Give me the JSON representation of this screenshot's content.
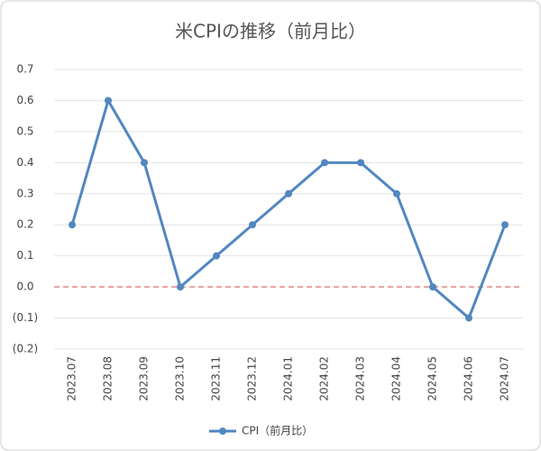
{
  "chart_data": {
    "type": "line",
    "title": "米CPIの推移（前月比）",
    "categories": [
      "2023.07",
      "2023.08",
      "2023.09",
      "2023.10",
      "2023.11",
      "2023.12",
      "2024.01",
      "2024.02",
      "2024.03",
      "2024.04",
      "2024.05",
      "2024.06",
      "2024.07"
    ],
    "series": [
      {
        "name": "CPI（前月比）",
        "color": "#5287c0",
        "values": [
          0.2,
          0.6,
          0.4,
          0,
          0.1,
          0.2,
          0.3,
          0.4,
          0.4,
          0.3,
          0,
          -0.1,
          0.2
        ]
      }
    ],
    "ylim": [
      -0.2,
      0.7
    ],
    "yticks": [
      0.7,
      0.6,
      0.5,
      0.4,
      0.3,
      0.2,
      0.1,
      {
        "value": 0,
        "label": "0.0"
      },
      {
        "value": -0.1,
        "label": "(0.1)"
      },
      {
        "value": -0.2,
        "label": "(0.2)"
      }
    ],
    "grid": true,
    "negative_tick_color": "#c0404f",
    "zero_line_color": "#e8a0a0",
    "legend": "bottom"
  }
}
